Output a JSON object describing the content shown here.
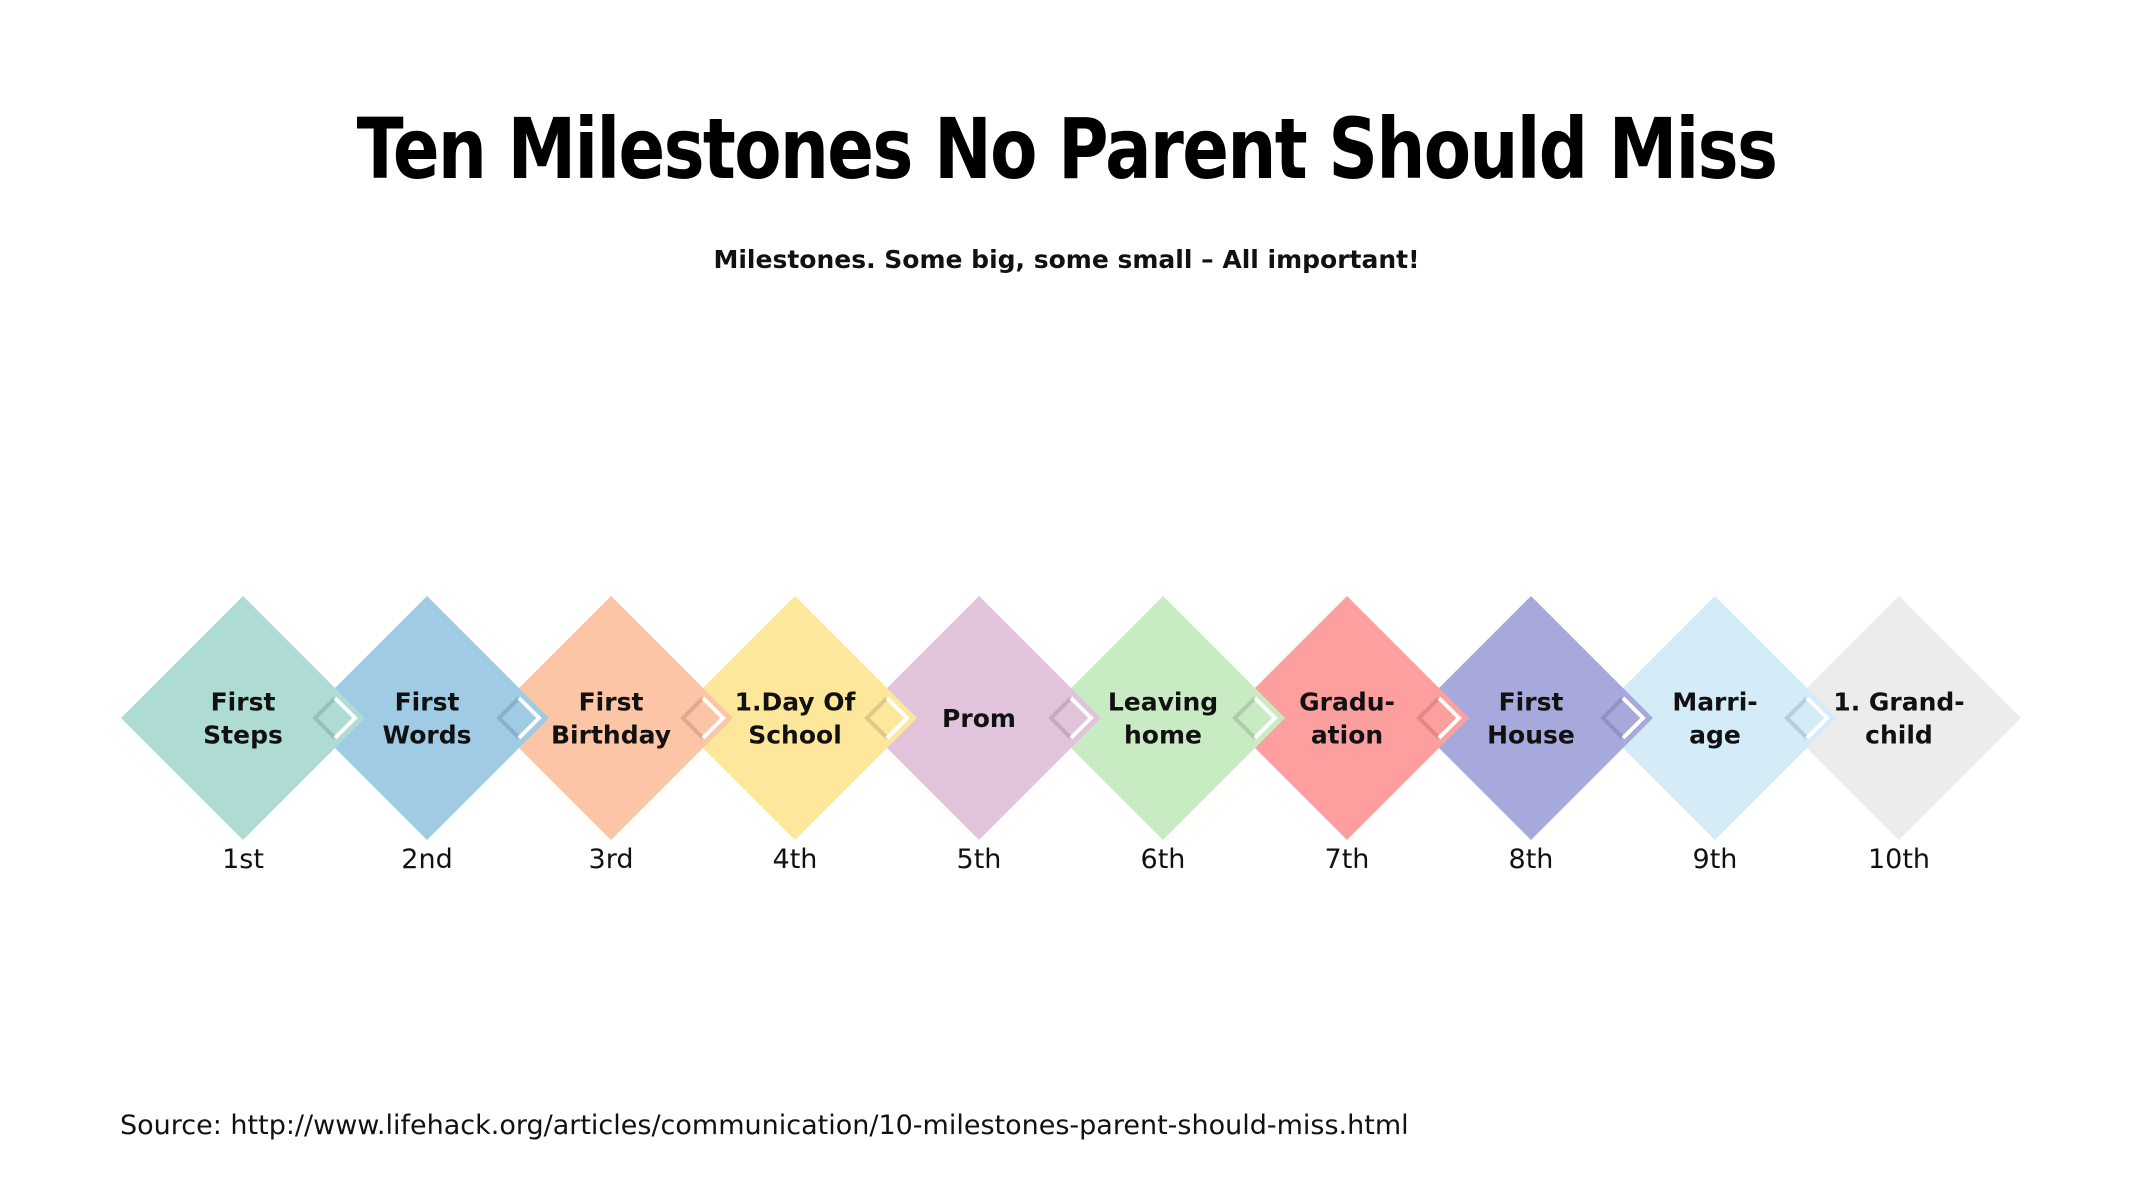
{
  "title": "Ten Milestones No Parent Should Miss",
  "subtitle": "Milestones. Some big, some small – All important!",
  "source": "Source: http://www.lifehack.org/articles/communication/10-milestones-parent-should-miss.html",
  "milestones": [
    {
      "lines": [
        "First",
        "Steps"
      ],
      "order": "1st",
      "color": "#aedcd4"
    },
    {
      "lines": [
        "First",
        "Words"
      ],
      "order": "2nd",
      "color": "#9fcbe5"
    },
    {
      "lines": [
        "First",
        "Birthday"
      ],
      "order": "3rd",
      "color": "#fcc5a5"
    },
    {
      "lines": [
        "1.Day Of",
        "School"
      ],
      "order": "4th",
      "color": "#fde79a"
    },
    {
      "lines": [
        "Prom"
      ],
      "order": "5th",
      "color": "#e1c4db"
    },
    {
      "lines": [
        "Leaving",
        "home"
      ],
      "order": "6th",
      "color": "#c9ebc3"
    },
    {
      "lines": [
        "Gradu-",
        "ation"
      ],
      "order": "7th",
      "color": "#fd9f9f"
    },
    {
      "lines": [
        "First",
        "House"
      ],
      "order": "8th",
      "color": "#a7a8db"
    },
    {
      "lines": [
        "Marri-",
        "age"
      ],
      "order": "9th",
      "color": "#d4ecf8"
    },
    {
      "lines": [
        "1. Grand-",
        "child"
      ],
      "order": "10th",
      "color": "#ececec"
    }
  ]
}
